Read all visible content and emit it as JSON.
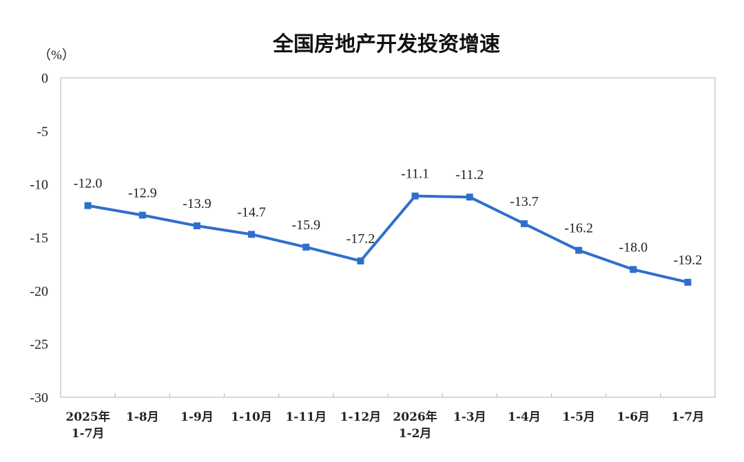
{
  "chart_data": {
    "type": "line",
    "title": "全国房地产开发投资增速",
    "ylabel": "（%）",
    "ylim": [
      -30,
      0
    ],
    "yticks": [
      "0",
      "-5",
      "-10",
      "-15",
      "-20",
      "-25",
      "-30"
    ],
    "categories": [
      [
        "2025年",
        "1-7月"
      ],
      [
        "1-8月"
      ],
      [
        "1-9月"
      ],
      [
        "1-10月"
      ],
      [
        "1-11月"
      ],
      [
        "1-12月"
      ],
      [
        "2026年",
        "1-2月"
      ],
      [
        "1-3月"
      ],
      [
        "1-4月"
      ],
      [
        "1-5月"
      ],
      [
        "1-6月"
      ],
      [
        "1-7月"
      ]
    ],
    "series": [
      {
        "values": [
          -12.0,
          -12.9,
          -13.9,
          -14.7,
          -15.9,
          -17.2,
          -11.1,
          -11.2,
          -13.7,
          -16.2,
          -18.0,
          -19.2
        ],
        "labels": [
          "-12.0",
          "-12.9",
          "-13.9",
          "-14.7",
          "-15.9",
          "-17.2",
          "-11.1",
          "-11.2",
          "-13.7",
          "-16.2",
          "-18.0",
          "-19.2"
        ],
        "color": "#2f6fcc"
      }
    ],
    "grid": false,
    "legend": "none"
  }
}
